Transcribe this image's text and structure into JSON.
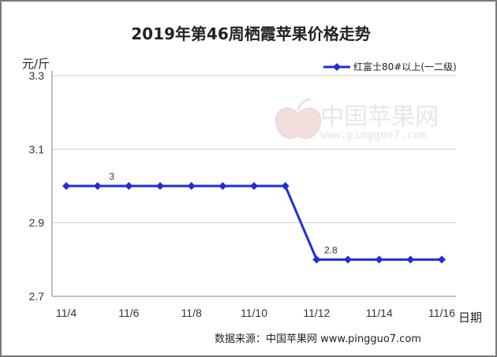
{
  "source_text": "数据来源：中国苹果网 www.pingguo7.com",
  "watermark": {
    "name": "中国苹果网",
    "url": "www.pingguo7.com"
  },
  "colors": {
    "series": "#1f2ed8",
    "axis": "#808080",
    "watermark": "#e5e5e5"
  },
  "chart_data": {
    "type": "line",
    "title": "2019年第46周栖霞苹果价格走势",
    "ylabel": "元/斤",
    "xlabel": "日期",
    "ylim": [
      2.7,
      3.3
    ],
    "y_ticks": [
      3.3,
      3.1,
      2.9,
      2.7
    ],
    "y_tick_labels": [
      "3.3",
      "3.1",
      "2.9",
      "2.7"
    ],
    "x_tick_labels": [
      "11/4",
      "11/6",
      "11/8",
      "11/10",
      "11/12",
      "11/14",
      "11/16"
    ],
    "categories": [
      "11/4",
      "11/5",
      "11/6",
      "11/7",
      "11/8",
      "11/9",
      "11/10",
      "11/11",
      "11/12",
      "11/13",
      "11/14",
      "11/15",
      "11/16"
    ],
    "series": [
      {
        "name": "红富士80#以上(一二级)",
        "values": [
          3,
          3,
          3,
          3,
          3,
          3,
          3,
          3,
          2.8,
          2.8,
          2.8,
          2.8,
          2.8
        ]
      }
    ],
    "data_labels": [
      {
        "index": 1,
        "text": "3"
      },
      {
        "index": 8,
        "text": "2.8"
      }
    ],
    "legend": "top-right",
    "grid": true
  }
}
